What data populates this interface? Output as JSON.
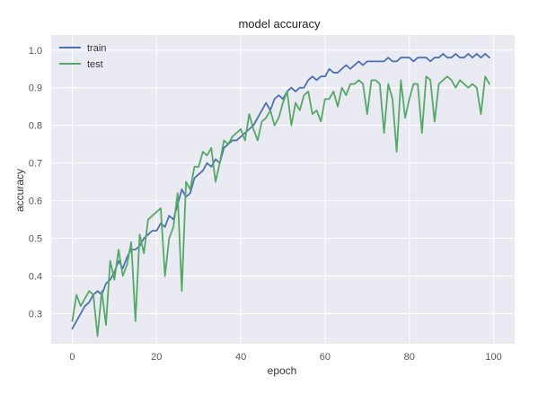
{
  "chart_data": {
    "type": "line",
    "title": "model accuracy",
    "xlabel": "epoch",
    "ylabel": "accuracy",
    "xlim": [
      -5,
      105
    ],
    "ylim": [
      0.22,
      1.04
    ],
    "xticks": [
      0,
      20,
      40,
      60,
      80,
      100
    ],
    "yticks": [
      0.3,
      0.4,
      0.5,
      0.6,
      0.7,
      0.8,
      0.9,
      1.0
    ],
    "xtick_labels": [
      "0",
      "20",
      "40",
      "60",
      "80",
      "100"
    ],
    "ytick_labels": [
      "0.3",
      "0.4",
      "0.5",
      "0.6",
      "0.7",
      "0.8",
      "0.9",
      "1.0"
    ],
    "grid": true,
    "background": "#eaeaf2",
    "legend": "top-left",
    "series": [
      {
        "name": "train",
        "color": "#4c72b0",
        "x": [
          0,
          1,
          2,
          3,
          4,
          5,
          6,
          7,
          8,
          9,
          10,
          11,
          12,
          13,
          14,
          15,
          16,
          17,
          18,
          19,
          20,
          21,
          22,
          23,
          24,
          25,
          26,
          27,
          28,
          29,
          30,
          31,
          32,
          33,
          34,
          35,
          36,
          37,
          38,
          39,
          40,
          41,
          42,
          43,
          44,
          45,
          46,
          47,
          48,
          49,
          50,
          51,
          52,
          53,
          54,
          55,
          56,
          57,
          58,
          59,
          60,
          61,
          62,
          63,
          64,
          65,
          66,
          67,
          68,
          69,
          70,
          71,
          72,
          73,
          74,
          75,
          76,
          77,
          78,
          79,
          80,
          81,
          82,
          83,
          84,
          85,
          86,
          87,
          88,
          89,
          90,
          91,
          92,
          93,
          94,
          95,
          96,
          97,
          98,
          99
        ],
        "y": [
          0.26,
          0.28,
          0.3,
          0.32,
          0.33,
          0.35,
          0.36,
          0.35,
          0.38,
          0.39,
          0.41,
          0.44,
          0.42,
          0.45,
          0.47,
          0.47,
          0.48,
          0.5,
          0.51,
          0.52,
          0.52,
          0.54,
          0.53,
          0.56,
          0.55,
          0.59,
          0.63,
          0.61,
          0.62,
          0.66,
          0.67,
          0.68,
          0.7,
          0.69,
          0.71,
          0.7,
          0.74,
          0.75,
          0.76,
          0.76,
          0.77,
          0.78,
          0.79,
          0.8,
          0.82,
          0.84,
          0.86,
          0.84,
          0.87,
          0.88,
          0.87,
          0.89,
          0.9,
          0.89,
          0.9,
          0.9,
          0.92,
          0.93,
          0.92,
          0.93,
          0.93,
          0.95,
          0.94,
          0.94,
          0.95,
          0.96,
          0.95,
          0.96,
          0.97,
          0.96,
          0.97,
          0.97,
          0.97,
          0.97,
          0.97,
          0.98,
          0.97,
          0.97,
          0.98,
          0.98,
          0.98,
          0.97,
          0.98,
          0.98,
          0.98,
          0.97,
          0.98,
          0.98,
          0.99,
          0.98,
          0.98,
          0.99,
          0.98,
          0.98,
          0.99,
          0.98,
          0.99,
          0.98,
          0.99,
          0.98
        ]
      },
      {
        "name": "test",
        "color": "#55a868",
        "x": [
          0,
          1,
          2,
          3,
          4,
          5,
          6,
          7,
          8,
          9,
          10,
          11,
          12,
          13,
          14,
          15,
          16,
          17,
          18,
          19,
          20,
          21,
          22,
          23,
          24,
          25,
          26,
          27,
          28,
          29,
          30,
          31,
          32,
          33,
          34,
          35,
          36,
          37,
          38,
          39,
          40,
          41,
          42,
          43,
          44,
          45,
          46,
          47,
          48,
          49,
          50,
          51,
          52,
          53,
          54,
          55,
          56,
          57,
          58,
          59,
          60,
          61,
          62,
          63,
          64,
          65,
          66,
          67,
          68,
          69,
          70,
          71,
          72,
          73,
          74,
          75,
          76,
          77,
          78,
          79,
          80,
          81,
          82,
          83,
          84,
          85,
          86,
          87,
          88,
          89,
          90,
          91,
          92,
          93,
          94,
          95,
          96,
          97,
          98,
          99
        ],
        "y": [
          0.28,
          0.35,
          0.32,
          0.34,
          0.36,
          0.35,
          0.24,
          0.36,
          0.27,
          0.44,
          0.39,
          0.47,
          0.4,
          0.43,
          0.49,
          0.28,
          0.51,
          0.46,
          0.55,
          0.56,
          0.57,
          0.58,
          0.4,
          0.5,
          0.53,
          0.62,
          0.36,
          0.65,
          0.63,
          0.69,
          0.69,
          0.73,
          0.72,
          0.74,
          0.65,
          0.7,
          0.76,
          0.75,
          0.77,
          0.78,
          0.79,
          0.76,
          0.83,
          0.79,
          0.76,
          0.81,
          0.82,
          0.84,
          0.8,
          0.82,
          0.86,
          0.89,
          0.8,
          0.86,
          0.84,
          0.88,
          0.89,
          0.83,
          0.84,
          0.81,
          0.87,
          0.87,
          0.89,
          0.85,
          0.9,
          0.88,
          0.91,
          0.91,
          0.92,
          0.91,
          0.83,
          0.92,
          0.92,
          0.91,
          0.78,
          0.91,
          0.87,
          0.73,
          0.92,
          0.82,
          0.87,
          0.91,
          0.91,
          0.78,
          0.93,
          0.92,
          0.81,
          0.91,
          0.92,
          0.93,
          0.92,
          0.9,
          0.92,
          0.91,
          0.9,
          0.91,
          0.9,
          0.83,
          0.93,
          0.91
        ]
      }
    ]
  }
}
